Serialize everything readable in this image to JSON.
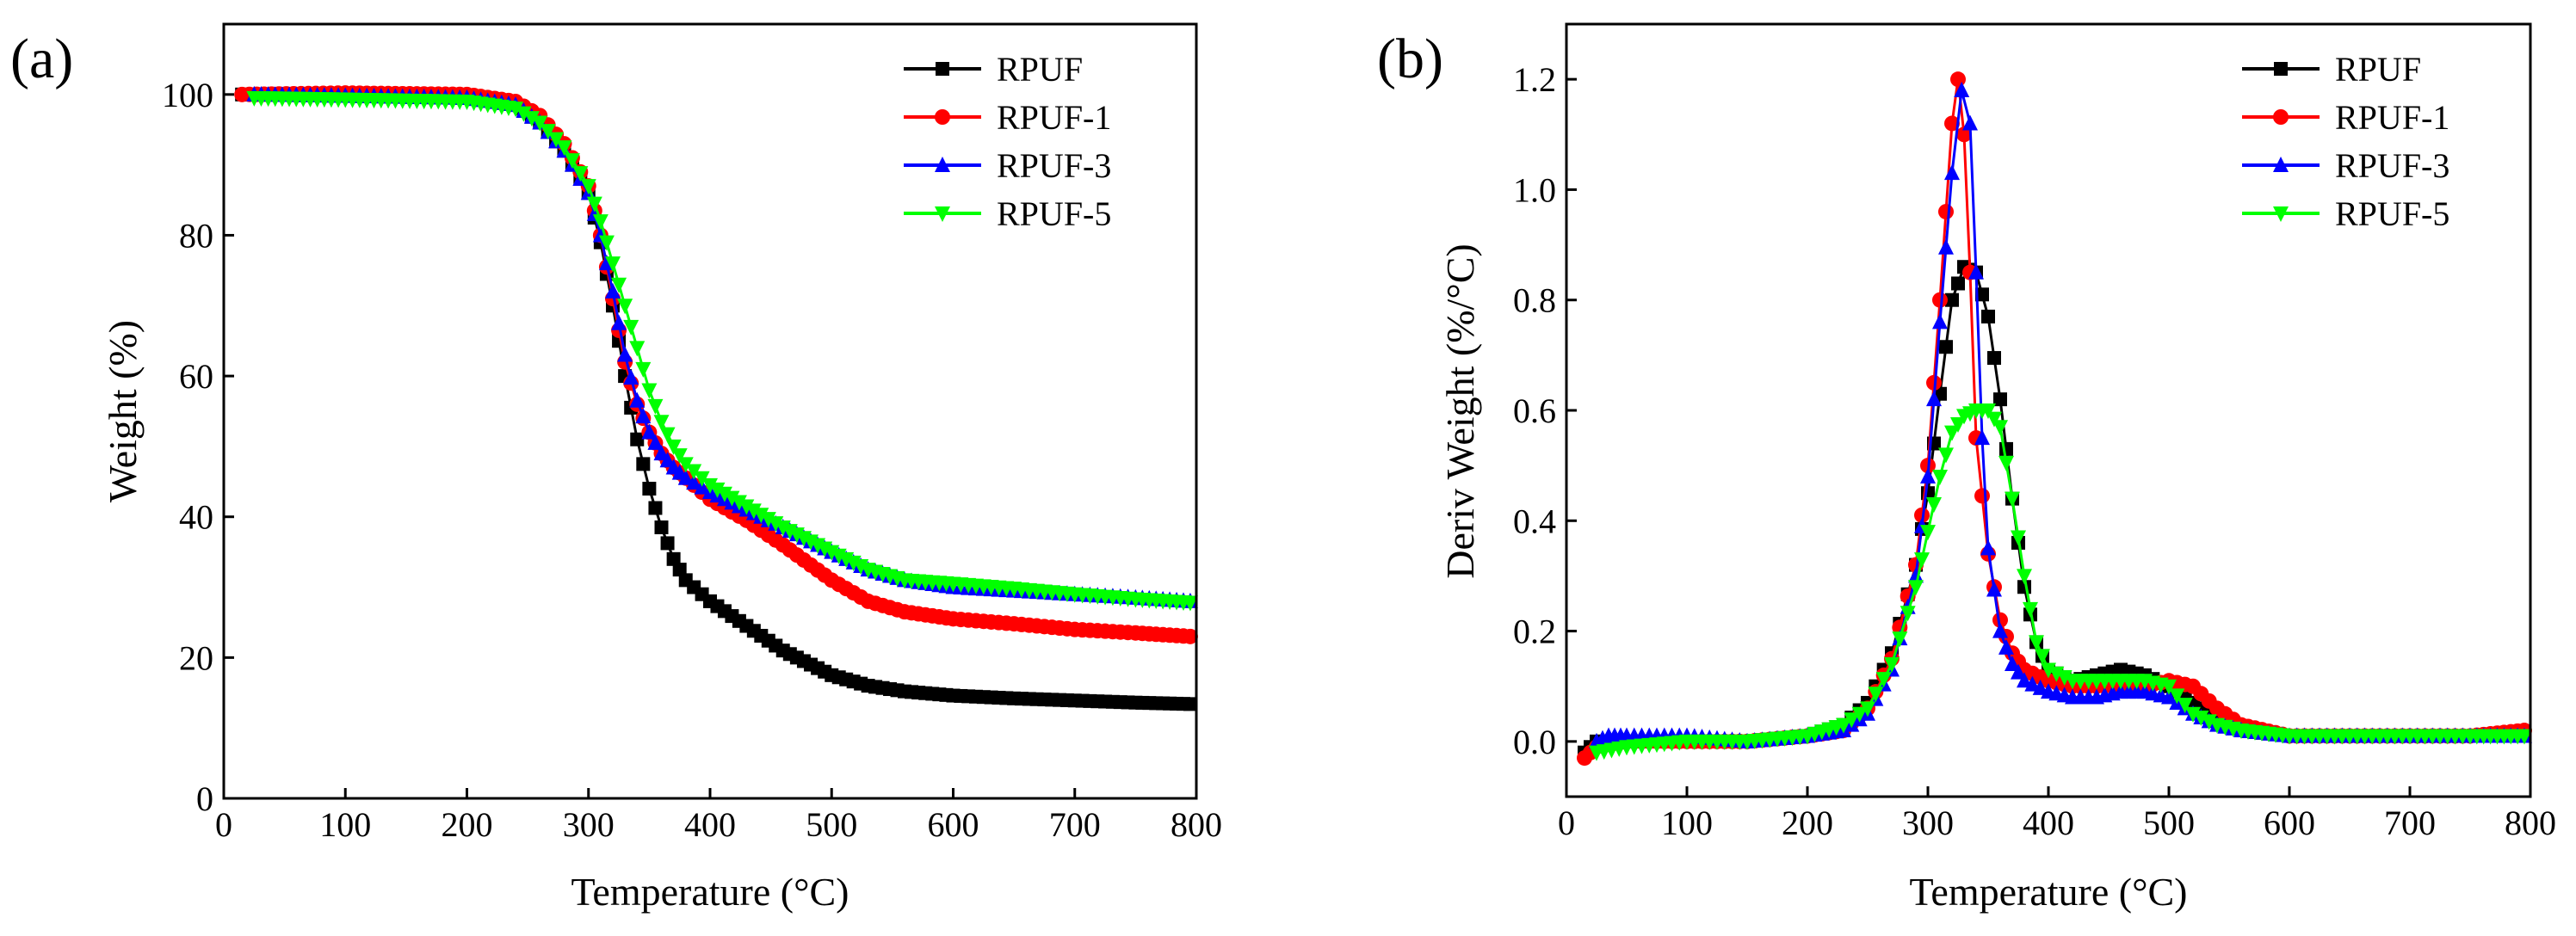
{
  "chart_data": [
    {
      "type": "scatter",
      "panel_label": "(a)",
      "title": "",
      "xlabel": "Temperature (°C)",
      "ylabel": "Weight (%)",
      "xlim": [
        0,
        800
      ],
      "ylim": [
        0,
        110
      ],
      "xticks": [
        "0",
        "100",
        "200",
        "300",
        "400",
        "500",
        "600",
        "700",
        "800"
      ],
      "yticks": [
        "0",
        "20",
        "40",
        "60",
        "80",
        "100"
      ],
      "legend_position": "top-right",
      "series": [
        {
          "name": "RPUF",
          "color": "#000000",
          "marker": "square",
          "x": [
            15,
            100,
            200,
            240,
            260,
            280,
            300,
            310,
            320,
            330,
            340,
            350,
            360,
            370,
            380,
            400,
            430,
            460,
            500,
            530,
            560,
            600,
            650,
            700,
            750,
            795
          ],
          "y": [
            100,
            99.8,
            99.5,
            98.5,
            96,
            92,
            86,
            79,
            70,
            60,
            51,
            44,
            38.5,
            34,
            31,
            28,
            24.5,
            21,
            17.5,
            16,
            15.2,
            14.6,
            14.2,
            13.9,
            13.6,
            13.4
          ]
        },
        {
          "name": "RPUF-1",
          "color": "#ff0000",
          "marker": "circle",
          "x": [
            15,
            100,
            200,
            240,
            260,
            280,
            300,
            310,
            320,
            330,
            340,
            350,
            360,
            370,
            380,
            400,
            430,
            460,
            500,
            530,
            560,
            600,
            650,
            700,
            750,
            795
          ],
          "y": [
            100,
            100.2,
            100,
            99,
            97,
            93,
            87,
            80,
            71,
            62,
            56,
            52,
            49,
            47,
            45.5,
            42.5,
            39.5,
            36,
            31,
            28,
            26.5,
            25.5,
            24.8,
            24,
            23.5,
            23
          ]
        },
        {
          "name": "RPUF-3",
          "color": "#0000ff",
          "marker": "triangle-up",
          "x": [
            25,
            100,
            200,
            240,
            260,
            280,
            300,
            310,
            320,
            330,
            340,
            350,
            360,
            370,
            380,
            400,
            430,
            460,
            500,
            530,
            560,
            600,
            650,
            700,
            750,
            795
          ],
          "y": [
            100,
            99.8,
            99.5,
            98.5,
            96,
            92,
            86,
            80,
            72,
            63,
            56.5,
            52,
            49,
            47,
            45.5,
            43.5,
            41,
            38.5,
            35,
            32.5,
            31,
            30,
            29.5,
            29,
            28.5,
            28
          ]
        },
        {
          "name": "RPUF-5",
          "color": "#00ff00",
          "marker": "triangle-down",
          "x": [
            25,
            100,
            200,
            240,
            260,
            280,
            300,
            310,
            320,
            330,
            340,
            350,
            360,
            370,
            380,
            400,
            430,
            460,
            500,
            530,
            560,
            600,
            650,
            700,
            750,
            795
          ],
          "y": [
            99.5,
            99.3,
            99,
            98,
            96,
            92.5,
            87,
            82,
            76,
            70,
            64,
            58,
            53.5,
            50,
            47.5,
            44.5,
            41.5,
            38.5,
            35,
            32.5,
            31,
            30.5,
            29.8,
            29,
            28.3,
            27.8
          ]
        }
      ]
    },
    {
      "type": "scatter",
      "panel_label": "(b)",
      "title": "",
      "xlabel": "Temperature (°C)",
      "ylabel": "Deriv Weight (%/°C)",
      "xlim": [
        0,
        800
      ],
      "ylim": [
        -0.1,
        1.3
      ],
      "xticks": [
        "0",
        "100",
        "200",
        "300",
        "400",
        "500",
        "600",
        "700",
        "800"
      ],
      "yticks": [
        "0.0",
        "0.2",
        "0.4",
        "0.6",
        "0.8",
        "1.0",
        "1.2"
      ],
      "legend_position": "top-right",
      "series": [
        {
          "name": "RPUF",
          "color": "#000000",
          "marker": "square",
          "x": [
            15,
            25,
            50,
            100,
            150,
            200,
            230,
            250,
            270,
            290,
            300,
            310,
            320,
            330,
            340,
            350,
            360,
            370,
            380,
            390,
            400,
            420,
            440,
            460,
            480,
            500,
            520,
            540,
            560,
            600,
            650,
            700,
            750,
            795
          ],
          "y": [
            -0.02,
            0.0,
            0.0,
            0.0,
            0.0,
            0.01,
            0.03,
            0.07,
            0.16,
            0.32,
            0.45,
            0.63,
            0.8,
            0.86,
            0.85,
            0.77,
            0.62,
            0.44,
            0.28,
            0.18,
            0.13,
            0.11,
            0.12,
            0.13,
            0.12,
            0.1,
            0.07,
            0.04,
            0.02,
            0.01,
            0.01,
            0.01,
            0.01,
            0.01
          ]
        },
        {
          "name": "RPUF-1",
          "color": "#ff0000",
          "marker": "circle",
          "x": [
            15,
            25,
            50,
            100,
            150,
            200,
            230,
            250,
            270,
            290,
            300,
            310,
            320,
            325,
            330,
            335,
            340,
            350,
            360,
            370,
            380,
            400,
            420,
            440,
            460,
            480,
            500,
            520,
            540,
            560,
            600,
            650,
            700,
            750,
            795
          ],
          "y": [
            -0.03,
            -0.01,
            0.0,
            0.0,
            0.0,
            0.01,
            0.02,
            0.06,
            0.15,
            0.32,
            0.5,
            0.8,
            1.12,
            1.2,
            1.1,
            0.85,
            0.55,
            0.34,
            0.22,
            0.16,
            0.13,
            0.11,
            0.1,
            0.1,
            0.1,
            0.1,
            0.11,
            0.1,
            0.06,
            0.03,
            0.01,
            0.01,
            0.01,
            0.01,
            0.02
          ]
        },
        {
          "name": "RPUF-3",
          "color": "#0000ff",
          "marker": "triangle-up",
          "x": [
            25,
            35,
            50,
            100,
            150,
            200,
            230,
            250,
            270,
            290,
            300,
            310,
            320,
            328,
            335,
            340,
            345,
            350,
            360,
            370,
            380,
            400,
            420,
            440,
            460,
            480,
            500,
            520,
            540,
            560,
            600,
            650,
            700,
            750,
            795
          ],
          "y": [
            0.0,
            0.01,
            0.01,
            0.01,
            0.0,
            0.01,
            0.02,
            0.05,
            0.13,
            0.3,
            0.48,
            0.76,
            1.03,
            1.18,
            1.12,
            0.85,
            0.55,
            0.35,
            0.2,
            0.14,
            0.11,
            0.09,
            0.08,
            0.08,
            0.09,
            0.09,
            0.08,
            0.05,
            0.03,
            0.02,
            0.01,
            0.01,
            0.01,
            0.01,
            0.01
          ]
        },
        {
          "name": "RPUF-5",
          "color": "#00ff00",
          "marker": "triangle-down",
          "x": [
            25,
            50,
            100,
            150,
            200,
            230,
            250,
            270,
            290,
            300,
            310,
            320,
            330,
            340,
            350,
            360,
            370,
            380,
            390,
            400,
            420,
            440,
            460,
            480,
            500,
            520,
            540,
            560,
            600,
            650,
            700,
            750,
            795
          ],
          "y": [
            -0.02,
            -0.01,
            0.0,
            0.0,
            0.01,
            0.03,
            0.06,
            0.14,
            0.28,
            0.38,
            0.48,
            0.56,
            0.59,
            0.6,
            0.6,
            0.57,
            0.44,
            0.3,
            0.18,
            0.13,
            0.11,
            0.11,
            0.11,
            0.11,
            0.1,
            0.05,
            0.03,
            0.02,
            0.01,
            0.01,
            0.01,
            0.01,
            0.01
          ]
        }
      ]
    }
  ]
}
